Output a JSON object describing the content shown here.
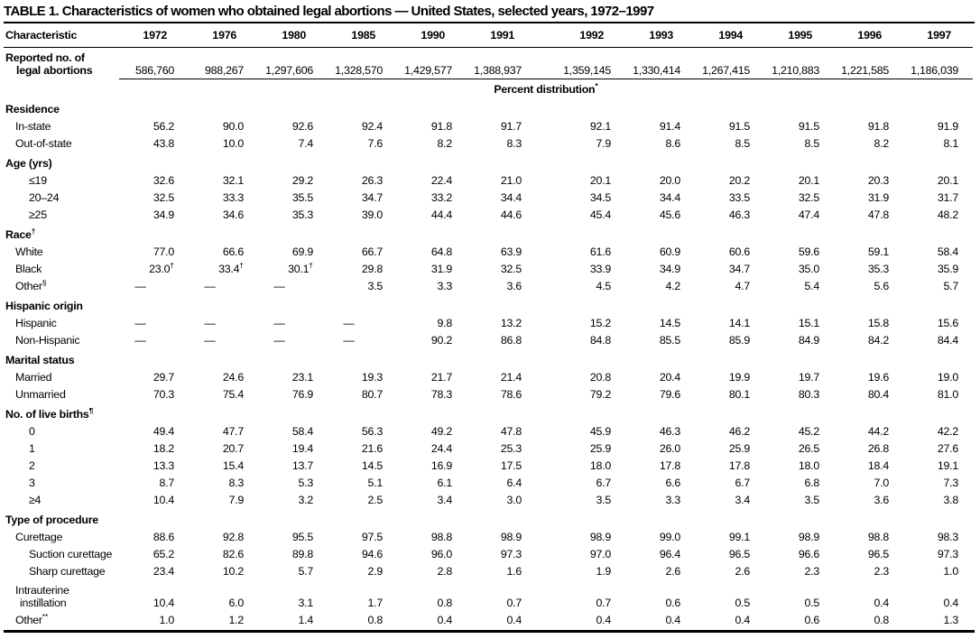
{
  "title": "TABLE 1. Characteristics of women who obtained legal abortions — United States, selected years, 1972–1997",
  "table": {
    "characteristic_header": "Characteristic",
    "years": [
      "1972",
      "1976",
      "1980",
      "1985",
      "1990",
      "1991",
      "1992",
      "1993",
      "1994",
      "1995",
      "1996",
      "1997"
    ],
    "reported_row": {
      "label_lines": [
        "Reported no. of",
        "legal abortions"
      ],
      "values": [
        "586,760",
        "988,267",
        "1,297,606",
        "1,328,570",
        "1,429,577",
        "1,388,937",
        "1,359,145",
        "1,330,414",
        "1,267,415",
        "1,210,883",
        "1,221,585",
        "1,186,039"
      ]
    },
    "percent_distribution_label": "Percent distribution*",
    "sections": [
      {
        "header": "Residence",
        "rows": [
          {
            "label": "In-state",
            "indent": 1,
            "values": [
              "56.2",
              "90.0",
              "92.6",
              "92.4",
              "91.8",
              "91.7",
              "92.1",
              "91.4",
              "91.5",
              "91.5",
              "91.8",
              "91.9"
            ]
          },
          {
            "label": "Out-of-state",
            "indent": 1,
            "values": [
              "43.8",
              "10.0",
              "7.4",
              "7.6",
              "8.2",
              "8.3",
              "7.9",
              "8.6",
              "8.5",
              "8.5",
              "8.2",
              "8.1"
            ]
          }
        ]
      },
      {
        "header": "Age (yrs)",
        "rows": [
          {
            "label": "≤19",
            "indent": 2,
            "values": [
              "32.6",
              "32.1",
              "29.2",
              "26.3",
              "22.4",
              "21.0",
              "20.1",
              "20.0",
              "20.2",
              "20.1",
              "20.3",
              "20.1"
            ]
          },
          {
            "label": "20–24",
            "indent": 2,
            "values": [
              "32.5",
              "33.3",
              "35.5",
              "34.7",
              "33.2",
              "34.4",
              "34.5",
              "34.4",
              "33.5",
              "32.5",
              "31.9",
              "31.7"
            ]
          },
          {
            "label": "≥25",
            "indent": 2,
            "values": [
              "34.9",
              "34.6",
              "35.3",
              "39.0",
              "44.4",
              "44.6",
              "45.4",
              "45.6",
              "46.3",
              "47.4",
              "47.8",
              "48.2"
            ]
          }
        ]
      },
      {
        "header": "Race†",
        "rows": [
          {
            "label": "White",
            "indent": 1,
            "values": [
              "77.0",
              "66.6",
              "69.9",
              "66.7",
              "64.8",
              "63.9",
              "61.6",
              "60.9",
              "60.6",
              "59.6",
              "59.1",
              "58.4"
            ]
          },
          {
            "label": "Black",
            "indent": 1,
            "values": [
              "23.0†",
              "33.4†",
              "30.1†",
              "29.8",
              "31.9",
              "32.5",
              "33.9",
              "34.9",
              "34.7",
              "35.0",
              "35.3",
              "35.9"
            ]
          },
          {
            "label": "Other§",
            "indent": 1,
            "values": [
              "—",
              "—",
              "—",
              "3.5",
              "3.3",
              "3.6",
              "4.5",
              "4.2",
              "4.7",
              "5.4",
              "5.6",
              "5.7"
            ]
          }
        ]
      },
      {
        "header": "Hispanic origin",
        "rows": [
          {
            "label": "Hispanic",
            "indent": 1,
            "values": [
              "—",
              "—",
              "—",
              "—",
              "9.8",
              "13.2",
              "15.2",
              "14.5",
              "14.1",
              "15.1",
              "15.8",
              "15.6"
            ]
          },
          {
            "label": "Non-Hispanic",
            "indent": 1,
            "values": [
              "—",
              "—",
              "—",
              "—",
              "90.2",
              "86.8",
              "84.8",
              "85.5",
              "85.9",
              "84.9",
              "84.2",
              "84.4"
            ]
          }
        ]
      },
      {
        "header": "Marital status",
        "rows": [
          {
            "label": "Married",
            "indent": 1,
            "values": [
              "29.7",
              "24.6",
              "23.1",
              "19.3",
              "21.7",
              "21.4",
              "20.8",
              "20.4",
              "19.9",
              "19.7",
              "19.6",
              "19.0"
            ]
          },
          {
            "label": "Unmarried",
            "indent": 1,
            "values": [
              "70.3",
              "75.4",
              "76.9",
              "80.7",
              "78.3",
              "78.6",
              "79.2",
              "79.6",
              "80.1",
              "80.3",
              "80.4",
              "81.0"
            ]
          }
        ]
      },
      {
        "header": "No. of live births¶",
        "rows": [
          {
            "label": "0",
            "indent": 2,
            "values": [
              "49.4",
              "47.7",
              "58.4",
              "56.3",
              "49.2",
              "47.8",
              "45.9",
              "46.3",
              "46.2",
              "45.2",
              "44.2",
              "42.2"
            ]
          },
          {
            "label": "1",
            "indent": 2,
            "values": [
              "18.2",
              "20.7",
              "19.4",
              "21.6",
              "24.4",
              "25.3",
              "25.9",
              "26.0",
              "25.9",
              "26.5",
              "26.8",
              "27.6"
            ]
          },
          {
            "label": "2",
            "indent": 2,
            "values": [
              "13.3",
              "15.4",
              "13.7",
              "14.5",
              "16.9",
              "17.5",
              "18.0",
              "17.8",
              "17.8",
              "18.0",
              "18.4",
              "19.1"
            ]
          },
          {
            "label": "3",
            "indent": 2,
            "values": [
              "8.7",
              "8.3",
              "5.3",
              "5.1",
              "6.1",
              "6.4",
              "6.7",
              "6.6",
              "6.7",
              "6.8",
              "7.0",
              "7.3"
            ]
          },
          {
            "label": "≥4",
            "indent": 2,
            "values": [
              "10.4",
              "7.9",
              "3.2",
              "2.5",
              "3.4",
              "3.0",
              "3.5",
              "3.3",
              "3.4",
              "3.5",
              "3.6",
              "3.8"
            ]
          }
        ]
      },
      {
        "header": "Type of procedure",
        "rows": [
          {
            "label": "Curettage",
            "indent": 1,
            "values": [
              "88.6",
              "92.8",
              "95.5",
              "97.5",
              "98.8",
              "98.9",
              "98.9",
              "99.0",
              "99.1",
              "98.9",
              "98.8",
              "98.3"
            ]
          },
          {
            "label": "Suction curettage",
            "indent": 2,
            "values": [
              "65.2",
              "82.6",
              "89.8",
              "94.6",
              "96.0",
              "97.3",
              "97.0",
              "96.4",
              "96.5",
              "96.6",
              "96.5",
              "97.3"
            ]
          },
          {
            "label": "Sharp curettage",
            "indent": 2,
            "values": [
              "23.4",
              "10.2",
              "5.7",
              "2.9",
              "2.8",
              "1.6",
              "1.9",
              "2.6",
              "2.6",
              "2.3",
              "2.3",
              "1.0"
            ]
          },
          {
            "label_lines": [
              "Intrauterine",
              "instillation"
            ],
            "indent": 1,
            "values": [
              "10.4",
              "6.0",
              "3.1",
              "1.7",
              "0.8",
              "0.7",
              "0.7",
              "0.6",
              "0.5",
              "0.5",
              "0.4",
              "0.4"
            ]
          },
          {
            "label": "Other**",
            "indent": 1,
            "values": [
              "1.0",
              "1.2",
              "1.4",
              "0.8",
              "0.4",
              "0.4",
              "0.4",
              "0.4",
              "0.4",
              "0.6",
              "0.8",
              "1.3"
            ]
          }
        ]
      }
    ]
  }
}
